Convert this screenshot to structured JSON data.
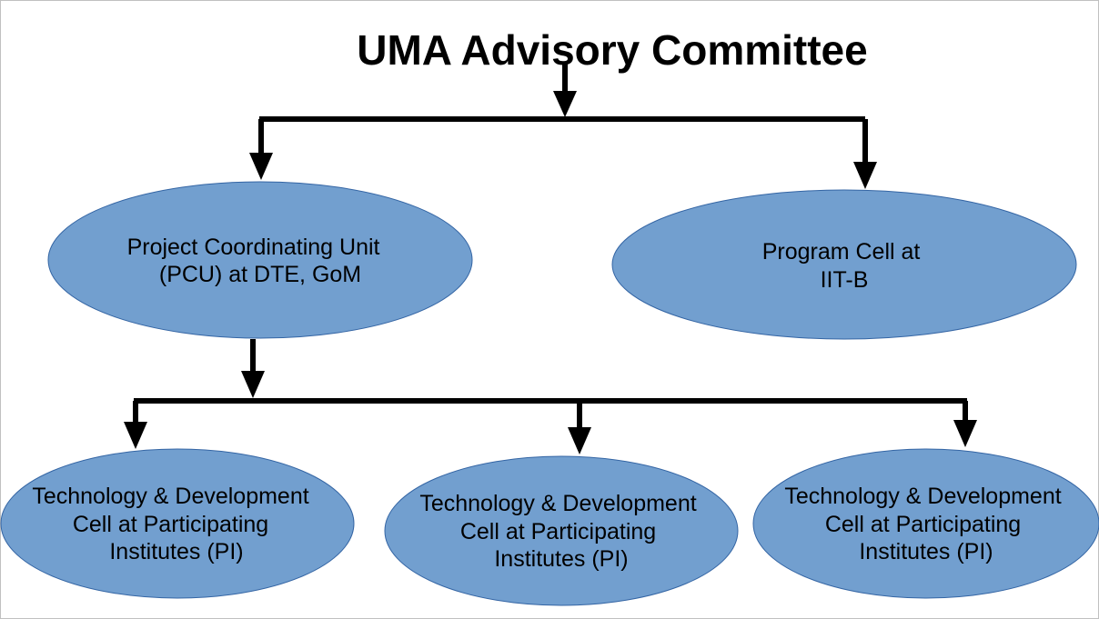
{
  "title": "UMA Advisory Committee",
  "nodes": {
    "pcu": {
      "lines": [
        "Project Coordinating Unit",
        "(PCU) at DTE, GoM"
      ]
    },
    "program_cell": {
      "lines": [
        "Program Cell at",
        "IIT-B"
      ]
    },
    "tdc_left": {
      "lines": [
        "Technology & Development",
        "Cell at Participating",
        "Institutes (PI)"
      ]
    },
    "tdc_middle": {
      "lines": [
        "Technology & Development",
        "Cell at Participating",
        "Institutes (PI)"
      ]
    },
    "tdc_right": {
      "lines": [
        "Technology & Development",
        "Cell at Participating",
        "Institutes (PI)"
      ]
    }
  },
  "colors": {
    "node_fill": "#729fcf",
    "node_stroke": "#3465a4",
    "connector": "#000000",
    "border": "#c0c0c0"
  }
}
